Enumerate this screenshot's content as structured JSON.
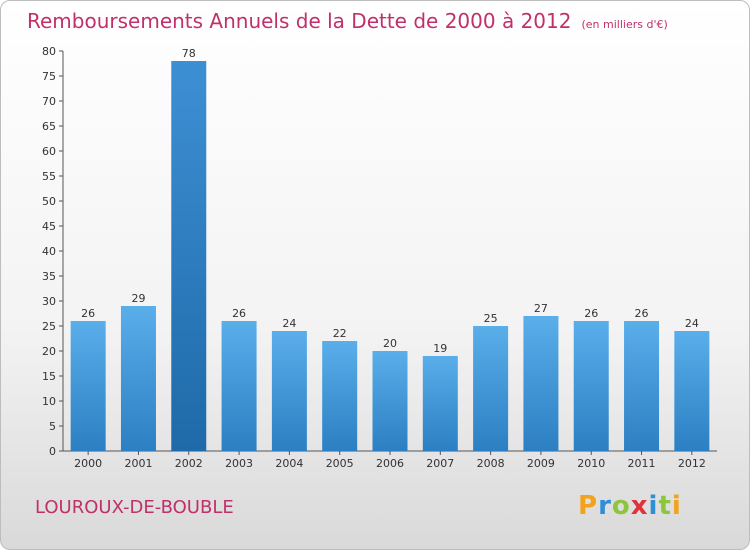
{
  "title": "Remboursements Annuels de la Dette de 2000 à 2012",
  "unit": "(en milliers d'€)",
  "town": "LOUROUX-DE-BOUBLE",
  "logo": {
    "letters": [
      "P",
      "r",
      "o",
      "x",
      "i",
      "t",
      "i"
    ],
    "colors": [
      "#f2a21b",
      "#2f8fd6",
      "#8cc63f",
      "#e0313d",
      "#2f8fd6",
      "#8cc63f",
      "#f2a21b"
    ]
  },
  "chart_data": {
    "type": "bar",
    "categories": [
      "2000",
      "2001",
      "2002",
      "2003",
      "2004",
      "2005",
      "2006",
      "2007",
      "2008",
      "2009",
      "2010",
      "2011",
      "2012"
    ],
    "values": [
      26,
      29,
      78,
      26,
      24,
      22,
      20,
      19,
      25,
      27,
      26,
      26,
      24
    ],
    "highlight": "2002",
    "ylim": [
      0,
      80
    ],
    "yticks": [
      0,
      5,
      10,
      15,
      20,
      25,
      30,
      35,
      40,
      45,
      50,
      55,
      60,
      65,
      70,
      75,
      80
    ],
    "grid": false,
    "bar_color": "#4a9fe0",
    "highlight_color": "#2a7cc4"
  }
}
